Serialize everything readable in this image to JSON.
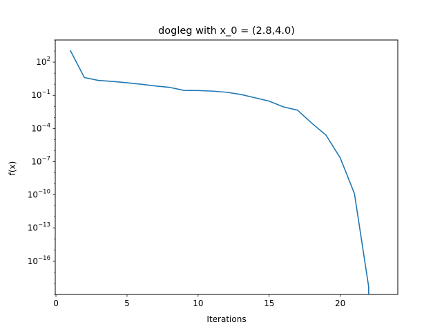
{
  "chart_data": {
    "type": "line",
    "title": "dogleg with x_0 = (2.8,4.0)",
    "xlabel": "Iterations",
    "ylabel": "f(x)",
    "xlim": [
      -0.05,
      24.05
    ],
    "ylim": [
      1e-19,
      10000.0
    ],
    "yscale": "log",
    "grid": false,
    "line_color": "#1f77b4",
    "x_ticks": [
      0,
      5,
      10,
      15,
      20
    ],
    "y_ticks": [
      {
        "exp": 2,
        "label": "10^2"
      },
      {
        "exp": -1,
        "label": "10^−1"
      },
      {
        "exp": -4,
        "label": "10^−4"
      },
      {
        "exp": -7,
        "label": "10^−7"
      },
      {
        "exp": -10,
        "label": "10^−10"
      },
      {
        "exp": -13,
        "label": "10^−13"
      },
      {
        "exp": -16,
        "label": "10^−16"
      }
    ],
    "series": [
      {
        "x": [
          1,
          2,
          3,
          4,
          5,
          6,
          7,
          8,
          9,
          10,
          11,
          12,
          13,
          14,
          15,
          16,
          17,
          18,
          19,
          20,
          21,
          22,
          22
        ],
        "y": [
          1200,
          4.0,
          2.2,
          1.8,
          1.35,
          1.0,
          0.7,
          0.52,
          0.28,
          0.27,
          0.24,
          0.19,
          0.12,
          0.06,
          0.03,
          0.009,
          0.0045,
          0.0003,
          2.5e-05,
          2.2e-07,
          1.3e-10,
          5e-19,
          1e-19
        ]
      }
    ]
  }
}
